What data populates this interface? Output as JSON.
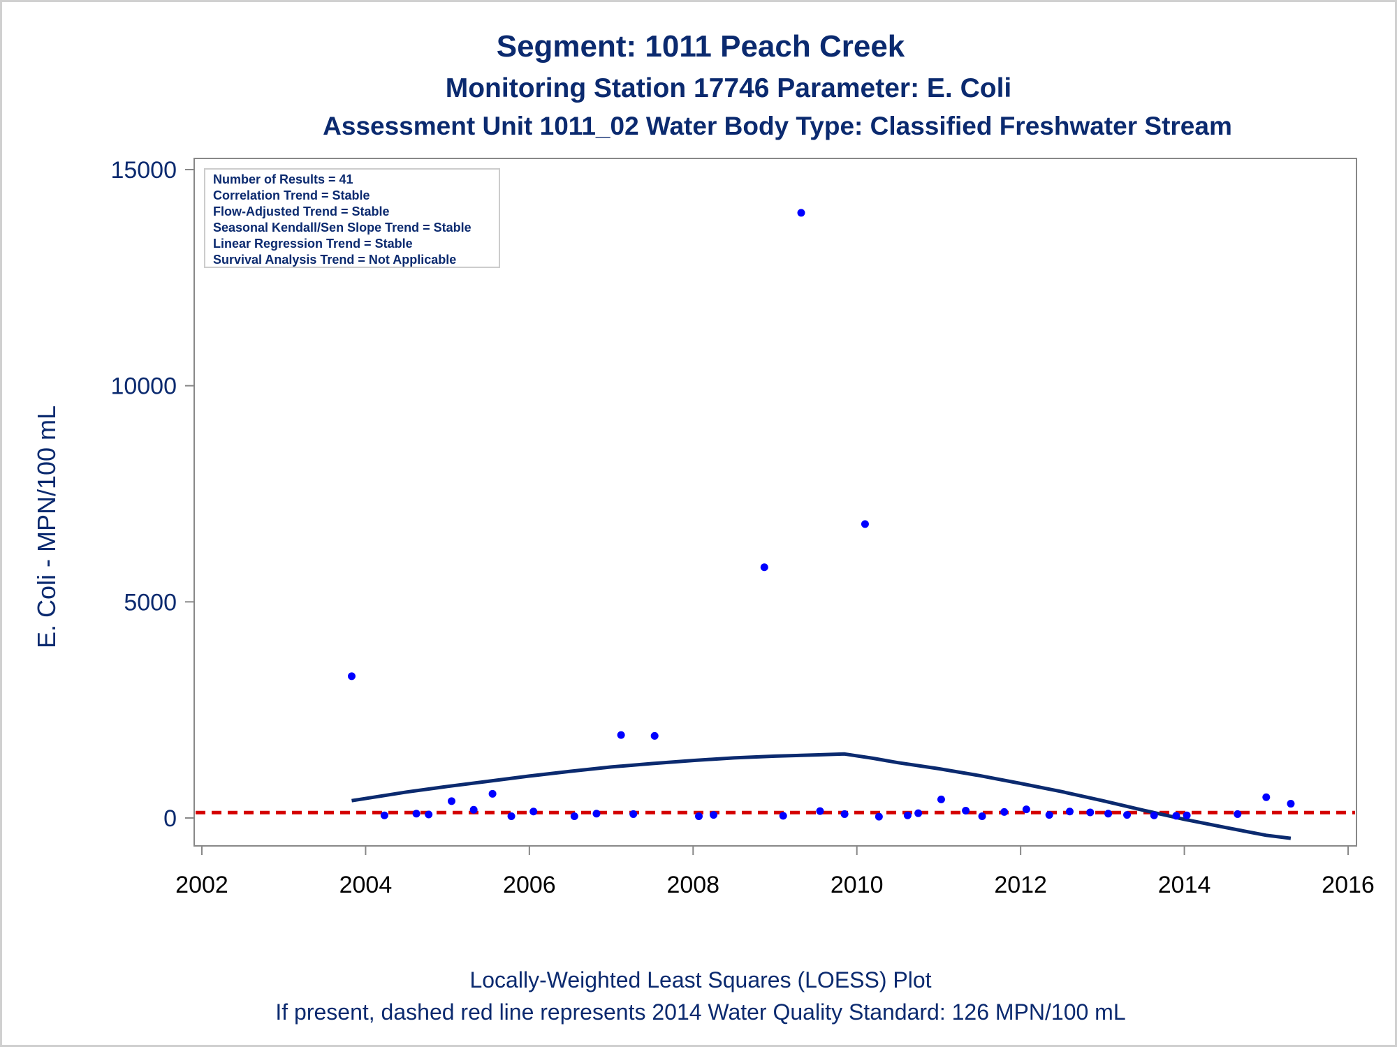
{
  "chart_data": {
    "type": "scatter",
    "title": "Segment: 1011  Peach Creek",
    "subtitle": "Monitoring Station 17746 Parameter: E. Coli",
    "subtitle2": "Assessment Unit 1011_02   Water Body Type: Classified Freshwater Stream",
    "ylabel": "E. Coli - MPN/100 mL",
    "xlabel": "",
    "footnote1": "Locally-Weighted Least Squares (LOESS) Plot",
    "footnote2": "If present, dashed red line represents 2014 Water Quality Standard: 126 MPN/100 mL",
    "xlim": [
      2002,
      2016
    ],
    "ylim": [
      -650,
      15000
    ],
    "x_ticks": [
      "2002",
      "2004",
      "2006",
      "2008",
      "2010",
      "2012",
      "2014",
      "2016"
    ],
    "y_ticks": [
      "0",
      "5000",
      "10000",
      "15000"
    ],
    "grid": false,
    "stats_box": {
      "placement": "top-left",
      "lines": [
        "Number of Results = 41",
        "Correlation Trend = Stable",
        "Flow-Adjusted Trend = Stable",
        "Seasonal Kendall/Sen Slope Trend = Stable",
        "Linear Regression Trend = Stable",
        "Survival Analysis Trend = Not Applicable"
      ]
    },
    "standard_line": {
      "value": 126,
      "color": "#d40000",
      "style": "dashed"
    },
    "colors": {
      "points": "#0000ff",
      "loess": "#0b2a6f",
      "text": "#0b2a6f",
      "axis": "#888888"
    },
    "series": [
      {
        "type": "scatter",
        "points": [
          [
            2003.83,
            3280
          ],
          [
            2004.23,
            60
          ],
          [
            2004.62,
            100
          ],
          [
            2004.77,
            80
          ],
          [
            2005.05,
            390
          ],
          [
            2005.32,
            190
          ],
          [
            2005.55,
            560
          ],
          [
            2005.78,
            40
          ],
          [
            2006.05,
            150
          ],
          [
            2006.55,
            40
          ],
          [
            2006.82,
            100
          ],
          [
            2007.12,
            1920
          ],
          [
            2007.27,
            90
          ],
          [
            2007.53,
            1900
          ],
          [
            2008.07,
            40
          ],
          [
            2008.25,
            70
          ],
          [
            2008.87,
            5800
          ],
          [
            2009.1,
            50
          ],
          [
            2009.32,
            14000
          ],
          [
            2009.55,
            160
          ],
          [
            2009.85,
            90
          ],
          [
            2010.1,
            6800
          ],
          [
            2010.27,
            30
          ],
          [
            2010.62,
            60
          ],
          [
            2010.75,
            110
          ],
          [
            2011.03,
            430
          ],
          [
            2011.33,
            170
          ],
          [
            2011.53,
            40
          ],
          [
            2011.8,
            140
          ],
          [
            2012.07,
            200
          ],
          [
            2012.35,
            70
          ],
          [
            2012.6,
            150
          ],
          [
            2012.85,
            130
          ],
          [
            2013.07,
            100
          ],
          [
            2013.3,
            70
          ],
          [
            2013.63,
            60
          ],
          [
            2013.9,
            50
          ],
          [
            2014.03,
            60
          ],
          [
            2014.65,
            90
          ],
          [
            2015.0,
            480
          ],
          [
            2015.3,
            330
          ]
        ]
      },
      {
        "type": "line",
        "points": [
          [
            2003.83,
            400
          ],
          [
            2004.5,
            600
          ],
          [
            2005.0,
            730
          ],
          [
            2005.5,
            850
          ],
          [
            2006.0,
            970
          ],
          [
            2006.5,
            1080
          ],
          [
            2007.0,
            1180
          ],
          [
            2007.5,
            1260
          ],
          [
            2008.0,
            1330
          ],
          [
            2008.5,
            1390
          ],
          [
            2009.0,
            1430
          ],
          [
            2009.5,
            1460
          ],
          [
            2009.85,
            1480
          ],
          [
            2010.2,
            1380
          ],
          [
            2010.5,
            1280
          ],
          [
            2011.0,
            1140
          ],
          [
            2011.5,
            980
          ],
          [
            2012.0,
            800
          ],
          [
            2012.5,
            610
          ],
          [
            2013.0,
            400
          ],
          [
            2013.5,
            180
          ],
          [
            2014.0,
            -30
          ],
          [
            2014.5,
            -220
          ],
          [
            2015.0,
            -400
          ],
          [
            2015.3,
            -470
          ]
        ]
      }
    ]
  }
}
